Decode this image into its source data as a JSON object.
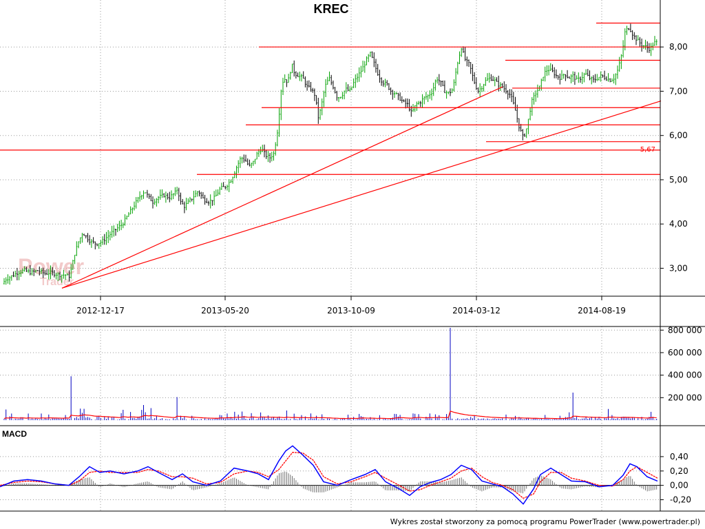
{
  "chart_data": [
    {
      "type": "candlestick",
      "title": "KREC",
      "x_ticks": [
        "2012-12-17",
        "2013-05-20",
        "2013-10-09",
        "2014-03-12",
        "2014-08-19"
      ],
      "y_ticks": [
        "3,00",
        "4,00",
        "5,00",
        "6,00",
        "7,00",
        "8,00"
      ],
      "ylim": [
        2.4,
        8.75
      ],
      "grid": true,
      "annotation": "5,67",
      "price_path": [
        [
          0,
          2.55
        ],
        [
          8,
          2.75
        ],
        [
          15,
          2.8
        ],
        [
          25,
          2.9
        ],
        [
          35,
          2.95
        ],
        [
          45,
          2.9
        ],
        [
          55,
          2.95
        ],
        [
          65,
          2.88
        ],
        [
          75,
          2.9
        ],
        [
          85,
          2.85
        ],
        [
          95,
          2.85
        ],
        [
          100,
          2.8
        ],
        [
          104,
          3.0
        ],
        [
          108,
          3.3
        ],
        [
          114,
          3.6
        ],
        [
          120,
          3.8
        ],
        [
          126,
          3.7
        ],
        [
          132,
          3.6
        ],
        [
          140,
          3.55
        ],
        [
          148,
          3.6
        ],
        [
          155,
          3.7
        ],
        [
          162,
          3.8
        ],
        [
          170,
          3.9
        ],
        [
          178,
          4.0
        ],
        [
          186,
          4.2
        ],
        [
          194,
          4.4
        ],
        [
          202,
          4.6
        ],
        [
          210,
          4.75
        ],
        [
          216,
          4.6
        ],
        [
          222,
          4.5
        ],
        [
          230,
          4.6
        ],
        [
          238,
          4.65
        ],
        [
          246,
          4.6
        ],
        [
          254,
          4.7
        ],
        [
          258,
          4.8
        ],
        [
          262,
          4.5
        ],
        [
          268,
          4.4
        ],
        [
          274,
          4.5
        ],
        [
          280,
          4.6
        ],
        [
          288,
          4.75
        ],
        [
          296,
          4.55
        ],
        [
          304,
          4.5
        ],
        [
          312,
          4.6
        ],
        [
          320,
          4.8
        ],
        [
          328,
          4.85
        ],
        [
          336,
          5.0
        ],
        [
          344,
          5.3
        ],
        [
          350,
          5.5
        ],
        [
          356,
          5.45
        ],
        [
          362,
          5.3
        ],
        [
          368,
          5.4
        ],
        [
          374,
          5.6
        ],
        [
          380,
          5.7
        ],
        [
          386,
          5.55
        ],
        [
          392,
          5.5
        ],
        [
          398,
          5.6
        ],
        [
          404,
          6.2
        ],
        [
          408,
          7.0
        ],
        [
          412,
          7.3
        ],
        [
          418,
          7.2
        ],
        [
          424,
          7.6
        ],
        [
          428,
          7.4
        ],
        [
          434,
          7.35
        ],
        [
          440,
          7.3
        ],
        [
          446,
          7.1
        ],
        [
          452,
          7.05
        ],
        [
          458,
          6.9
        ],
        [
          462,
          6.4
        ],
        [
          466,
          6.6
        ],
        [
          472,
          7.1
        ],
        [
          478,
          7.3
        ],
        [
          484,
          7.1
        ],
        [
          490,
          6.85
        ],
        [
          496,
          6.9
        ],
        [
          502,
          7.05
        ],
        [
          508,
          7.0
        ],
        [
          514,
          7.2
        ],
        [
          520,
          7.35
        ],
        [
          526,
          7.5
        ],
        [
          532,
          7.7
        ],
        [
          538,
          7.85
        ],
        [
          544,
          7.6
        ],
        [
          550,
          7.35
        ],
        [
          556,
          7.2
        ],
        [
          562,
          7.15
        ],
        [
          568,
          7.0
        ],
        [
          574,
          6.95
        ],
        [
          580,
          6.85
        ],
        [
          586,
          6.75
        ],
        [
          592,
          6.7
        ],
        [
          598,
          6.5
        ],
        [
          604,
          6.7
        ],
        [
          610,
          6.75
        ],
        [
          616,
          6.85
        ],
        [
          622,
          6.9
        ],
        [
          628,
          7.0
        ],
        [
          634,
          7.3
        ],
        [
          640,
          7.2
        ],
        [
          646,
          7.0
        ],
        [
          652,
          6.95
        ],
        [
          658,
          7.05
        ],
        [
          664,
          7.6
        ],
        [
          670,
          8.0
        ],
        [
          676,
          7.7
        ],
        [
          682,
          7.6
        ],
        [
          688,
          7.25
        ],
        [
          694,
          7.0
        ],
        [
          700,
          7.1
        ],
        [
          706,
          7.25
        ],
        [
          712,
          7.3
        ],
        [
          718,
          7.25
        ],
        [
          724,
          7.15
        ],
        [
          730,
          7.1
        ],
        [
          736,
          7.0
        ],
        [
          742,
          6.9
        ],
        [
          748,
          6.6
        ],
        [
          754,
          6.2
        ],
        [
          760,
          5.95
        ],
        [
          764,
          6.1
        ],
        [
          768,
          6.4
        ],
        [
          772,
          6.75
        ],
        [
          778,
          6.95
        ],
        [
          784,
          7.1
        ],
        [
          790,
          7.4
        ],
        [
          796,
          7.5
        ],
        [
          802,
          7.45
        ],
        [
          808,
          7.35
        ],
        [
          814,
          7.3
        ],
        [
          820,
          7.4
        ],
        [
          826,
          7.3
        ],
        [
          832,
          7.35
        ],
        [
          838,
          7.25
        ],
        [
          844,
          7.3
        ],
        [
          850,
          7.4
        ],
        [
          856,
          7.3
        ],
        [
          862,
          7.25
        ],
        [
          868,
          7.3
        ],
        [
          874,
          7.35
        ],
        [
          880,
          7.3
        ],
        [
          886,
          7.25
        ],
        [
          892,
          7.3
        ],
        [
          898,
          7.5
        ],
        [
          904,
          7.9
        ],
        [
          908,
          8.35
        ],
        [
          914,
          8.45
        ],
        [
          920,
          8.25
        ],
        [
          926,
          8.15
        ],
        [
          932,
          8.05
        ],
        [
          938,
          8.0
        ],
        [
          944,
          7.95
        ],
        [
          950,
          8.1
        ],
        [
          956,
          8.1
        ]
      ],
      "horizontal_lines": [
        {
          "price": 8.54,
          "x_start": 866
        },
        {
          "price": 8.0,
          "x_start": 376
        },
        {
          "price": 7.7,
          "x_start": 734
        },
        {
          "price": 7.07,
          "x_start": 744
        },
        {
          "price": 6.63,
          "x_start": 380
        },
        {
          "price": 6.24,
          "x_start": 357
        },
        {
          "price": 5.86,
          "x_start": 706
        },
        {
          "price": 5.67,
          "x_start": 0
        },
        {
          "price": 5.12,
          "x_start": 286
        }
      ],
      "trendlines": [
        {
          "from": [
            90,
            2.55
          ],
          "to": [
            730,
            7.1
          ]
        },
        {
          "from": [
            90,
            2.55
          ],
          "to": [
            960,
            6.78
          ]
        }
      ]
    },
    {
      "type": "bar",
      "name": "volume",
      "y_ticks": [
        "200 000",
        "400 000",
        "600 000",
        "800 000"
      ],
      "ylim": [
        0,
        820000
      ],
      "spikes": [
        {
          "x": 8,
          "value": 95000
        },
        {
          "x": 103,
          "value": 390000
        },
        {
          "x": 208,
          "value": 135000
        },
        {
          "x": 258,
          "value": 205000
        },
        {
          "x": 653,
          "value": 820000
        },
        {
          "x": 832,
          "value": 245000
        }
      ]
    },
    {
      "type": "line",
      "title": "MACD",
      "y_ticks": [
        "-0,20",
        "0,00",
        "0,20",
        "0,40"
      ],
      "ylim": [
        -0.32,
        0.62
      ],
      "macd": [
        [
          0,
          -0.02
        ],
        [
          20,
          0.06
        ],
        [
          40,
          0.08
        ],
        [
          60,
          0.06
        ],
        [
          80,
          0.02
        ],
        [
          100,
          0.0
        ],
        [
          115,
          0.12
        ],
        [
          130,
          0.26
        ],
        [
          145,
          0.18
        ],
        [
          160,
          0.2
        ],
        [
          180,
          0.16
        ],
        [
          200,
          0.2
        ],
        [
          215,
          0.26
        ],
        [
          230,
          0.18
        ],
        [
          250,
          0.08
        ],
        [
          265,
          0.16
        ],
        [
          280,
          0.05
        ],
        [
          300,
          0.0
        ],
        [
          320,
          0.06
        ],
        [
          340,
          0.24
        ],
        [
          360,
          0.2
        ],
        [
          375,
          0.16
        ],
        [
          390,
          0.08
        ],
        [
          405,
          0.34
        ],
        [
          415,
          0.48
        ],
        [
          425,
          0.55
        ],
        [
          440,
          0.42
        ],
        [
          455,
          0.28
        ],
        [
          470,
          0.05
        ],
        [
          490,
          0.0
        ],
        [
          510,
          0.08
        ],
        [
          530,
          0.15
        ],
        [
          545,
          0.22
        ],
        [
          560,
          0.05
        ],
        [
          580,
          -0.05
        ],
        [
          595,
          -0.14
        ],
        [
          610,
          -0.02
        ],
        [
          625,
          0.04
        ],
        [
          640,
          0.08
        ],
        [
          655,
          0.15
        ],
        [
          670,
          0.28
        ],
        [
          685,
          0.22
        ],
        [
          700,
          0.06
        ],
        [
          715,
          0.02
        ],
        [
          730,
          -0.02
        ],
        [
          745,
          -0.12
        ],
        [
          760,
          -0.26
        ],
        [
          775,
          -0.05
        ],
        [
          785,
          0.15
        ],
        [
          800,
          0.24
        ],
        [
          815,
          0.15
        ],
        [
          830,
          0.06
        ],
        [
          850,
          0.05
        ],
        [
          870,
          -0.02
        ],
        [
          890,
          0.0
        ],
        [
          905,
          0.14
        ],
        [
          915,
          0.3
        ],
        [
          925,
          0.26
        ],
        [
          940,
          0.12
        ],
        [
          955,
          0.06
        ]
      ],
      "signal": [
        [
          0,
          0.0
        ],
        [
          20,
          0.04
        ],
        [
          40,
          0.06
        ],
        [
          60,
          0.05
        ],
        [
          80,
          0.02
        ],
        [
          100,
          0.0
        ],
        [
          115,
          0.06
        ],
        [
          130,
          0.18
        ],
        [
          145,
          0.2
        ],
        [
          160,
          0.18
        ],
        [
          180,
          0.18
        ],
        [
          200,
          0.18
        ],
        [
          215,
          0.22
        ],
        [
          230,
          0.2
        ],
        [
          250,
          0.12
        ],
        [
          265,
          0.12
        ],
        [
          280,
          0.1
        ],
        [
          300,
          0.02
        ],
        [
          320,
          0.04
        ],
        [
          340,
          0.16
        ],
        [
          360,
          0.2
        ],
        [
          375,
          0.18
        ],
        [
          390,
          0.12
        ],
        [
          405,
          0.22
        ],
        [
          415,
          0.34
        ],
        [
          425,
          0.46
        ],
        [
          440,
          0.45
        ],
        [
          455,
          0.35
        ],
        [
          470,
          0.12
        ],
        [
          490,
          0.02
        ],
        [
          510,
          0.05
        ],
        [
          530,
          0.12
        ],
        [
          545,
          0.18
        ],
        [
          560,
          0.1
        ],
        [
          580,
          0.0
        ],
        [
          595,
          -0.08
        ],
        [
          610,
          -0.06
        ],
        [
          625,
          0.0
        ],
        [
          640,
          0.05
        ],
        [
          655,
          0.1
        ],
        [
          670,
          0.2
        ],
        [
          685,
          0.24
        ],
        [
          700,
          0.12
        ],
        [
          715,
          0.04
        ],
        [
          730,
          0.0
        ],
        [
          745,
          -0.06
        ],
        [
          760,
          -0.18
        ],
        [
          775,
          -0.12
        ],
        [
          785,
          0.05
        ],
        [
          800,
          0.18
        ],
        [
          815,
          0.18
        ],
        [
          830,
          0.1
        ],
        [
          850,
          0.06
        ],
        [
          870,
          0.0
        ],
        [
          890,
          -0.01
        ],
        [
          905,
          0.08
        ],
        [
          915,
          0.2
        ],
        [
          925,
          0.26
        ],
        [
          940,
          0.18
        ],
        [
          955,
          0.1
        ]
      ]
    }
  ],
  "watermark": {
    "line1": "Power",
    "line2": "Trader"
  },
  "footer": "Wykres został stworzony za pomocą programu PowerTrader (www.powertrader.pl)",
  "colors": {
    "up_candle": "#00a000",
    "down_candle": "#000000",
    "support_line": "#ff0000",
    "volume_bar": "#0000c0",
    "volume_avg": "#ff0000",
    "macd_line": "#0000ff",
    "signal_line": "#ff0000",
    "histogram": "#707070"
  }
}
